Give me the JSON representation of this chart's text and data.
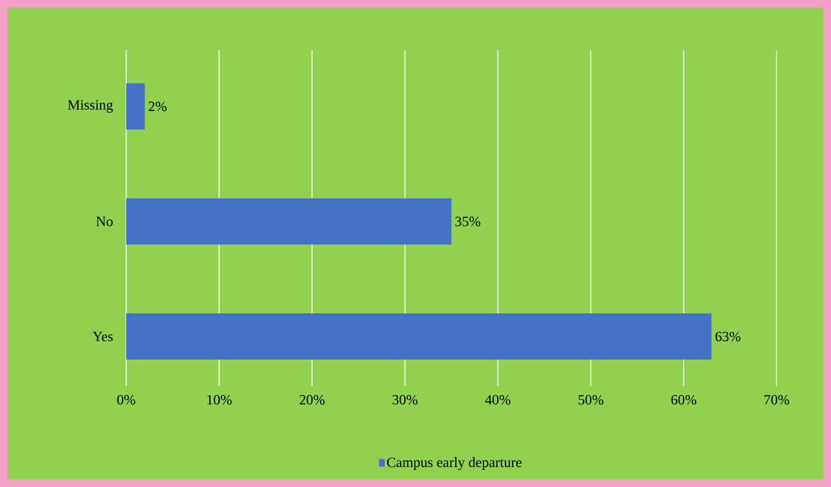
{
  "chart_data": {
    "type": "bar",
    "orientation": "horizontal",
    "categories": [
      "Missing",
      "No",
      "Yes"
    ],
    "series": [
      {
        "name": "Campus early departure",
        "color": "#4472c4",
        "values": [
          2,
          35,
          63
        ],
        "value_labels": [
          "2%",
          "35%",
          "63%"
        ]
      }
    ],
    "xlim": [
      0,
      70
    ],
    "xticks": [
      {
        "value": 0,
        "label": "0%"
      },
      {
        "value": 10,
        "label": "10%"
      },
      {
        "value": 20,
        "label": "20%"
      },
      {
        "value": 30,
        "label": "30%"
      },
      {
        "value": 40,
        "label": "40%"
      },
      {
        "value": 50,
        "label": "50%"
      },
      {
        "value": 60,
        "label": "60%"
      },
      {
        "value": 70,
        "label": "70%"
      }
    ],
    "grid": "x",
    "legend": "bottom"
  }
}
